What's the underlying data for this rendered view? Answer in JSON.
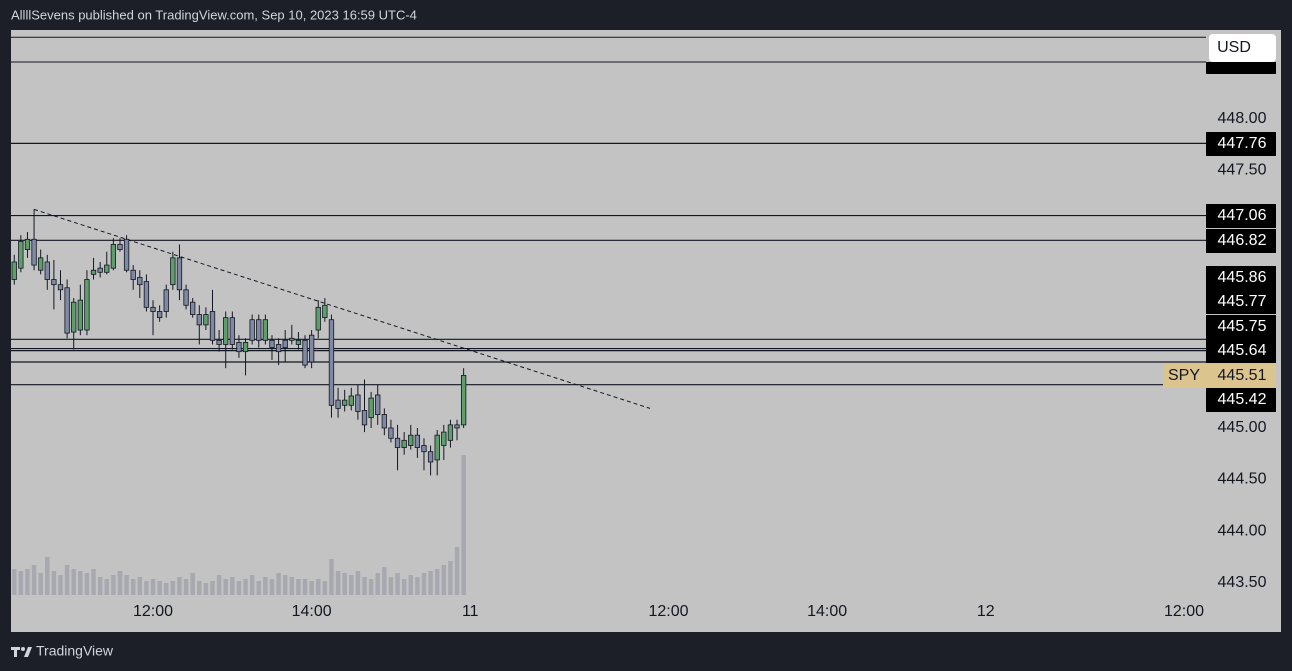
{
  "header": "AllllSevens published on TradingView.com, Sep 10, 2023 16:59 UTC-4",
  "footer": "TradingView",
  "chart_data": {
    "type": "candlestick",
    "symbol": "SPY",
    "currency": "USD",
    "x": [
      9,
      10,
      11,
      12,
      13,
      14,
      15,
      16,
      17,
      18,
      19,
      20,
      21,
      22,
      23,
      24,
      25,
      26,
      27,
      28,
      29,
      30,
      31,
      32,
      33,
      34,
      35,
      36,
      37,
      38,
      39,
      40,
      41,
      42,
      43,
      44,
      45,
      46,
      47,
      48,
      49,
      50,
      51,
      52,
      53,
      54,
      55,
      56,
      57,
      58,
      59,
      60,
      61,
      62,
      63,
      64,
      65,
      66,
      67,
      68,
      69,
      70,
      71,
      72,
      73,
      74,
      75,
      76,
      77
    ],
    "open": [
      446.44,
      446.55,
      446.73,
      446.83,
      446.53,
      446.61,
      446.44,
      446.39,
      446.36,
      445.93,
      445.95,
      445.95,
      446.49,
      446.55,
      446.51,
      446.55,
      446.78,
      446.83,
      446.53,
      446.46,
      446.42,
      446.17,
      446.13,
      446.34,
      446.39,
      446.65,
      446.34,
      446.22,
      446.1,
      446.0,
      446.13,
      445.85,
      445.81,
      446.07,
      445.83,
      445.74,
      446.05,
      446.05,
      445.85,
      445.85,
      445.81,
      445.85,
      445.85,
      445.81,
      445.85,
      445.9,
      445.95,
      446.07,
      446.05,
      445.27,
      445.22,
      445.22,
      445.32,
      445.17,
      445.1,
      445.32,
      445.13,
      445.0,
      444.9,
      444.81,
      444.83,
      444.93,
      444.83,
      444.77,
      444.69,
      444.83,
      444.88,
      445.03,
      445.03
    ],
    "high": [
      446.68,
      446.87,
      446.9,
      447.12,
      446.73,
      446.68,
      446.63,
      446.53,
      446.44,
      446.26,
      446.39,
      446.53,
      446.65,
      446.61,
      446.71,
      446.84,
      446.84,
      446.87,
      446.58,
      446.53,
      446.49,
      446.24,
      446.19,
      446.39,
      446.71,
      446.78,
      446.39,
      446.26,
      446.19,
      446.17,
      446.34,
      445.95,
      446.13,
      446.13,
      445.9,
      445.87,
      446.1,
      446.1,
      446.1,
      445.9,
      445.87,
      445.95,
      446.0,
      445.93,
      445.9,
      445.95,
      446.24,
      446.26,
      446.1,
      445.39,
      445.37,
      445.39,
      445.42,
      445.47,
      445.35,
      445.42,
      445.19,
      445.08,
      445.03,
      444.96,
      445.03,
      445.0,
      444.9,
      444.83,
      444.98,
      445.03,
      445.08,
      445.08,
      445.58
    ],
    "low": [
      446.39,
      446.51,
      446.65,
      446.53,
      446.49,
      446.34,
      446.15,
      446.24,
      445.87,
      445.76,
      445.9,
      445.9,
      446.44,
      446.46,
      446.49,
      446.53,
      446.71,
      446.51,
      446.34,
      446.26,
      446.13,
      445.9,
      446.03,
      446.07,
      446.34,
      446.24,
      446.15,
      446.07,
      445.81,
      445.95,
      445.81,
      445.74,
      445.58,
      445.76,
      445.68,
      445.51,
      445.81,
      445.78,
      445.81,
      445.66,
      445.61,
      445.64,
      445.81,
      445.76,
      445.58,
      445.58,
      445.87,
      446.03,
      445.1,
      445.1,
      445.16,
      445.17,
      445.08,
      444.96,
      445.0,
      445.03,
      444.93,
      444.86,
      444.59,
      444.74,
      444.79,
      444.71,
      444.59,
      444.54,
      444.54,
      444.69,
      444.81,
      444.88,
      445.0
    ],
    "close": [
      446.61,
      446.81,
      446.83,
      446.58,
      446.65,
      446.44,
      446.39,
      446.34,
      445.92,
      446.22,
      446.24,
      446.44,
      446.53,
      446.51,
      446.58,
      446.78,
      446.73,
      446.53,
      446.44,
      446.39,
      446.17,
      446.13,
      446.07,
      446.13,
      446.65,
      446.34,
      446.19,
      446.1,
      446.0,
      446.1,
      445.85,
      445.81,
      446.07,
      445.81,
      445.74,
      445.83,
      445.85,
      445.85,
      446.05,
      445.78,
      445.74,
      445.78,
      445.87,
      445.85,
      445.61,
      445.64,
      446.17,
      446.19,
      445.22,
      445.19,
      445.27,
      445.31,
      445.16,
      445.03,
      445.29,
      445.13,
      445.0,
      444.9,
      444.81,
      444.88,
      444.93,
      444.81,
      444.77,
      444.67,
      444.93,
      444.96,
      445.03,
      445.0,
      445.51
    ],
    "volume": [
      26,
      24,
      26,
      30,
      22,
      38,
      24,
      20,
      30,
      26,
      24,
      22,
      26,
      18,
      16,
      20,
      24,
      20,
      16,
      18,
      14,
      16,
      14,
      12,
      14,
      18,
      16,
      22,
      14,
      12,
      14,
      20,
      16,
      18,
      14,
      16,
      20,
      14,
      18,
      16,
      22,
      20,
      18,
      16,
      16,
      14,
      16,
      14,
      36,
      24,
      22,
      20,
      24,
      18,
      16,
      22,
      28,
      18,
      22,
      16,
      20,
      18,
      22,
      24,
      26,
      30,
      34,
      48,
      140
    ],
    "up_color": "#5e9e6b",
    "down_color": "#8089a3",
    "xlim": [
      8.51,
      189.33
    ],
    "xticks": [
      {
        "value": 30,
        "label": "12:00"
      },
      {
        "value": 54,
        "label": "14:00"
      },
      {
        "value": 78,
        "label": "11"
      },
      {
        "value": 108,
        "label": "12:00"
      },
      {
        "value": 132,
        "label": "14:00"
      },
      {
        "value": 156,
        "label": "12"
      },
      {
        "value": 186,
        "label": "12:00"
      }
    ],
    "ylim": [
      443.38,
      448.86
    ],
    "yticks": [
      {
        "value": 448,
        "label": "448.00"
      },
      {
        "value": 447.5,
        "label": "447.50"
      },
      {
        "value": 445,
        "label": "445.00"
      },
      {
        "value": 444.5,
        "label": "444.50"
      },
      {
        "value": 444,
        "label": "444.00"
      },
      {
        "value": 443.5,
        "label": "443.50"
      }
    ],
    "levels": [
      447.76,
      447.06,
      446.82,
      445.86,
      445.77,
      445.75,
      445.64,
      445.42
    ],
    "unlabeled_levels": [
      448.79,
      448.55
    ],
    "last_price": 445.51,
    "trendline": {
      "x": [
        12,
        105.2
      ],
      "y": [
        447.12,
        445.19
      ]
    }
  }
}
